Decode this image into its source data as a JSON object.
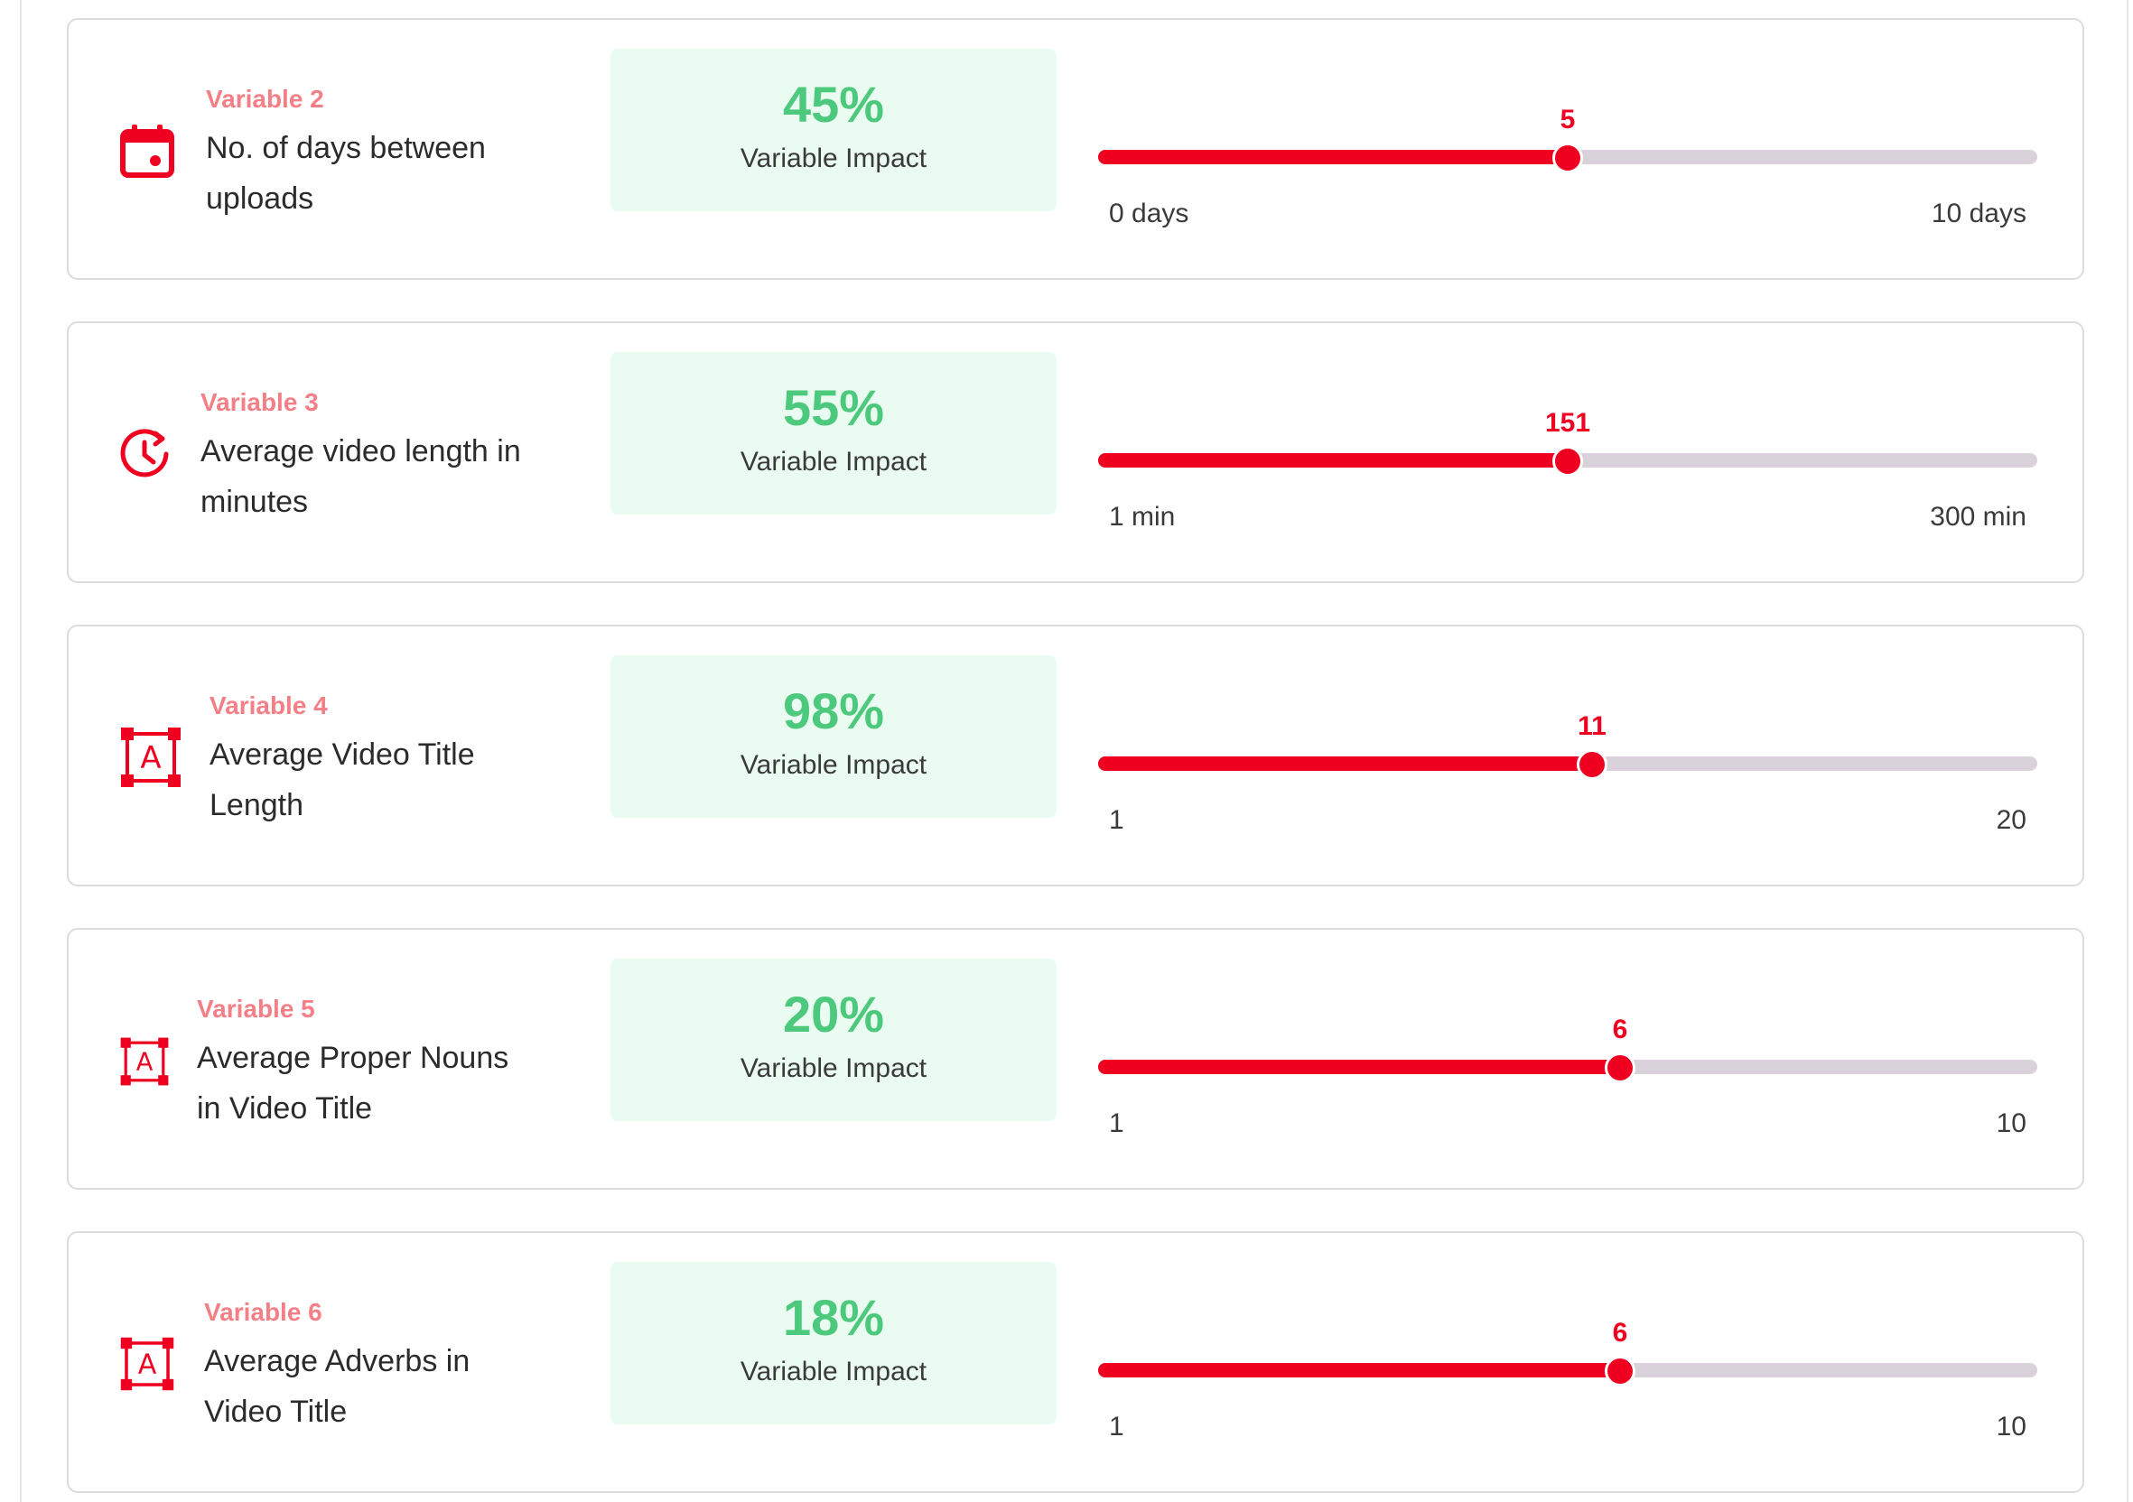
{
  "theme": {
    "accent": "#f00020",
    "label_color": "#f47f86",
    "impact_bg": "#eafbf1",
    "impact_text": "#4cc97c",
    "track": "#d9d2db"
  },
  "impact_caption": "Variable Impact",
  "variables": [
    {
      "label": "Variable 2",
      "name": "No. of days between uploads",
      "icon": "calendar-icon",
      "impact": "45%",
      "value": "5",
      "min_label": "0 days",
      "max_label": "10 days",
      "fraction": 0.5
    },
    {
      "label": "Variable 3",
      "name": "Average video length in minutes",
      "icon": "clock-history-icon",
      "impact": "55%",
      "value": "151",
      "min_label": "1 min",
      "max_label": "300 min",
      "fraction": 0.5
    },
    {
      "label": "Variable 4",
      "name": "Average Video Title Length",
      "icon": "text-frame-icon",
      "impact": "98%",
      "value": "11",
      "min_label": "1",
      "max_label": "20",
      "fraction": 0.5263
    },
    {
      "label": "Variable 5",
      "name": "Average Proper Nouns in Video Title",
      "icon": "text-frame-icon",
      "impact": "20%",
      "value": "6",
      "min_label": "1",
      "max_label": "10",
      "fraction": 0.5556
    },
    {
      "label": "Variable 6",
      "name": "Average Adverbs in Video Title",
      "icon": "text-frame-icon",
      "impact": "18%",
      "value": "6",
      "min_label": "1",
      "max_label": "10",
      "fraction": 0.5556
    }
  ]
}
